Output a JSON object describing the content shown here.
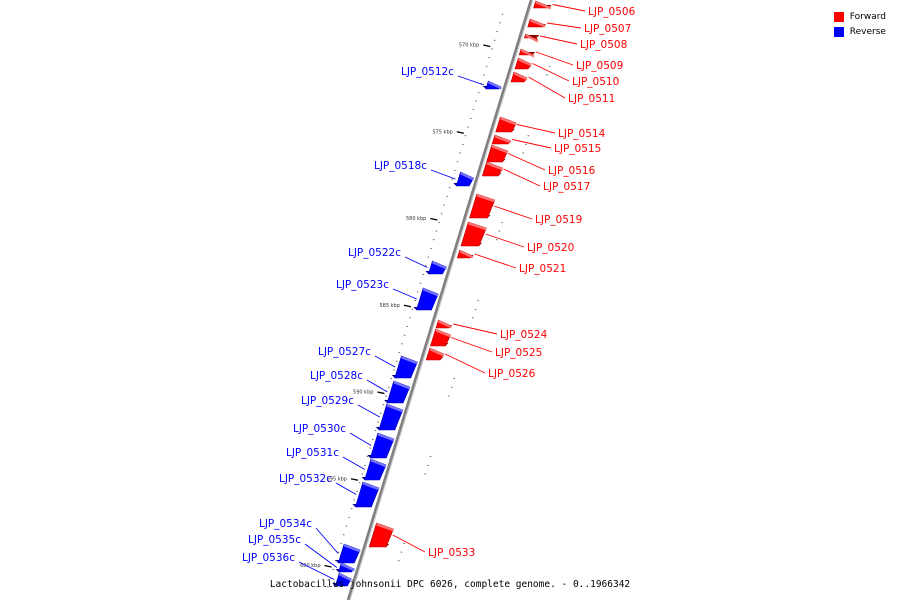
{
  "colors": {
    "forward": "#ff0000",
    "reverse": "#0000ff",
    "backbone": "#808080"
  },
  "legend": {
    "forward": "Forward",
    "reverse": "Reverse"
  },
  "caption": "Lactobacillus johnsonii DPC 6026, complete genome. - 0..1966342",
  "scale": [
    {
      "kbp": 570,
      "label": "570 kbp"
    },
    {
      "kbp": 575,
      "label": "575 kbp"
    },
    {
      "kbp": 580,
      "label": "580 kbp"
    },
    {
      "kbp": 585,
      "label": "585 kbp"
    },
    {
      "kbp": 590,
      "label": "590 kbp"
    },
    {
      "kbp": 595,
      "label": "595 kbp"
    },
    {
      "kbp": 600,
      "label": "600 kbp"
    }
  ],
  "genes": [
    {
      "name": "LJP_0506",
      "strand": "forward"
    },
    {
      "name": "LJP_0507",
      "strand": "forward"
    },
    {
      "name": "LJP_0508",
      "strand": "forward"
    },
    {
      "name": "LJP_0509",
      "strand": "forward"
    },
    {
      "name": "LJP_0510",
      "strand": "forward"
    },
    {
      "name": "LJP_0511",
      "strand": "forward"
    },
    {
      "name": "LJP_0512c",
      "strand": "reverse"
    },
    {
      "name": "LJP_0514",
      "strand": "forward"
    },
    {
      "name": "LJP_0515",
      "strand": "forward"
    },
    {
      "name": "LJP_0516",
      "strand": "forward"
    },
    {
      "name": "LJP_0517",
      "strand": "forward"
    },
    {
      "name": "LJP_0518c",
      "strand": "reverse"
    },
    {
      "name": "LJP_0519",
      "strand": "forward"
    },
    {
      "name": "LJP_0520",
      "strand": "forward"
    },
    {
      "name": "LJP_0521",
      "strand": "forward"
    },
    {
      "name": "LJP_0522c",
      "strand": "reverse"
    },
    {
      "name": "LJP_0523c",
      "strand": "reverse"
    },
    {
      "name": "LJP_0524",
      "strand": "forward"
    },
    {
      "name": "LJP_0525",
      "strand": "forward"
    },
    {
      "name": "LJP_0526",
      "strand": "forward"
    },
    {
      "name": "LJP_0527c",
      "strand": "reverse"
    },
    {
      "name": "LJP_0528c",
      "strand": "reverse"
    },
    {
      "name": "LJP_0529c",
      "strand": "reverse"
    },
    {
      "name": "LJP_0530c",
      "strand": "reverse"
    },
    {
      "name": "LJP_0531c",
      "strand": "reverse"
    },
    {
      "name": "LJP_0532c",
      "strand": "reverse"
    },
    {
      "name": "LJP_0533",
      "strand": "forward"
    },
    {
      "name": "LJP_0534c",
      "strand": "reverse"
    },
    {
      "name": "LJP_0535c",
      "strand": "reverse"
    },
    {
      "name": "LJP_0536c",
      "strand": "reverse"
    }
  ]
}
